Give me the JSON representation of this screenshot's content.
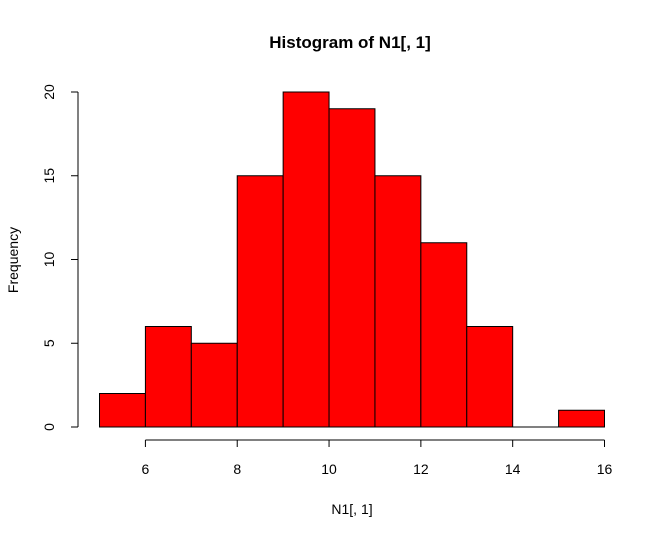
{
  "chart_data": {
    "type": "bar",
    "title": "Histogram of N1[, 1]",
    "xlabel": "N1[, 1]",
    "ylabel": "Frequency",
    "bins": [
      {
        "from": 5,
        "to": 6,
        "count": 2
      },
      {
        "from": 6,
        "to": 7,
        "count": 6
      },
      {
        "from": 7,
        "to": 8,
        "count": 5
      },
      {
        "from": 8,
        "to": 9,
        "count": 15
      },
      {
        "from": 9,
        "to": 10,
        "count": 20
      },
      {
        "from": 10,
        "to": 11,
        "count": 19
      },
      {
        "from": 11,
        "to": 12,
        "count": 15
      },
      {
        "from": 12,
        "to": 13,
        "count": 11
      },
      {
        "from": 13,
        "to": 14,
        "count": 6
      },
      {
        "from": 14,
        "to": 15,
        "count": 0
      },
      {
        "from": 15,
        "to": 16,
        "count": 1
      }
    ],
    "xlim": [
      5,
      16
    ],
    "ylim": [
      0,
      20
    ],
    "x_ticks": [
      "6",
      "8",
      "10",
      "12",
      "14",
      "16"
    ],
    "y_ticks": [
      "0",
      "5",
      "10",
      "15",
      "20"
    ],
    "grid": false,
    "bar_color": "#ff0000",
    "bar_edge_color": "#000000"
  }
}
